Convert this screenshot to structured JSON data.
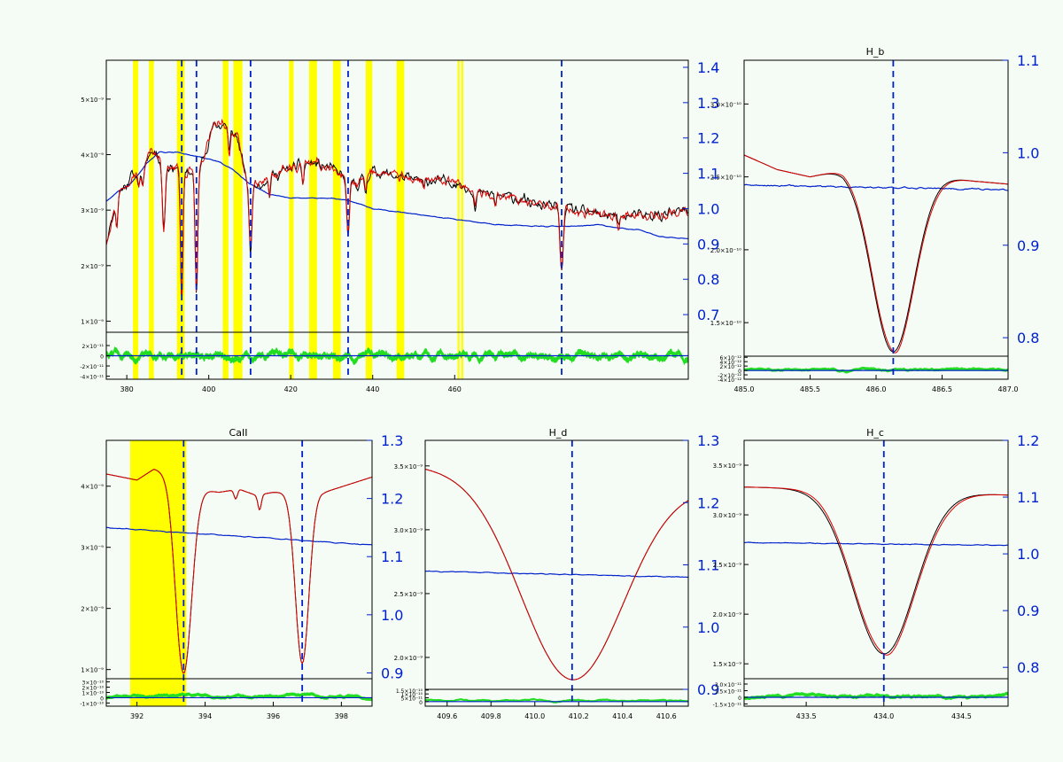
{
  "colors": {
    "background": "#f5fbf5",
    "observed": "#000000",
    "model": "#dd0000",
    "continuum": "#0022cc",
    "residual": "#22dd22",
    "marker": "#0022cc",
    "highlight": "#ffff00"
  },
  "chart_data": [
    {
      "id": "overview",
      "type": "line",
      "title": "",
      "xlim": [
        375,
        517
      ],
      "ylim": [
        0.8,
        5.7
      ],
      "y2lim": [
        0.65,
        1.42
      ],
      "xticks": [
        380,
        400,
        420,
        440,
        460
      ],
      "xtick_labels": [
        "380",
        "400",
        "420",
        "440",
        "460"
      ],
      "yticks": [
        1,
        2,
        3,
        4,
        5
      ],
      "ytick_labels": [
        "1×10⁻⁹",
        "2×10⁻⁹",
        "3×10⁻⁹",
        "4×10⁻⁹",
        "5×10⁻⁹"
      ],
      "y2ticks": [
        0.7,
        0.8,
        0.9,
        1.0,
        1.1,
        1.2,
        1.3,
        1.4
      ],
      "y2tick_labels": [
        "0.7",
        "0.8",
        "0.9",
        "1.0",
        "1.1",
        "1.2",
        "1.3",
        "1.4"
      ],
      "rlim": [
        -4.6,
        4.6
      ],
      "rticks": [
        -4,
        -2,
        0,
        2
      ],
      "rtick_labels": [
        "-4×10⁻¹¹",
        "-2×10⁻¹¹",
        "0",
        "2×10⁻¹¹"
      ],
      "markers": [
        393.4,
        397.0,
        410.2,
        434.0,
        486.1
      ],
      "highlights": [
        [
          381.5,
          382.8
        ],
        [
          385.4,
          386.6
        ],
        [
          392.2,
          394.1
        ],
        [
          403.4,
          404.8
        ],
        [
          406.0,
          408.2
        ],
        [
          419.6,
          420.7
        ],
        [
          424.5,
          426.4
        ],
        [
          430.3,
          432.2
        ],
        [
          438.3,
          439.9
        ],
        [
          445.8,
          447.7
        ],
        [
          460.7,
          461.2
        ],
        [
          461.6,
          462.1
        ]
      ],
      "lines": [
        [
          377.6,
          0.45,
          0.35
        ],
        [
          382.9,
          0.25,
          0.35
        ],
        [
          383.8,
          0.35,
          0.4
        ],
        [
          388.9,
          0.45,
          0.45
        ],
        [
          389.1,
          0.8,
          0.5
        ],
        [
          393.4,
          2.3,
          0.4
        ],
        [
          397.0,
          2.3,
          0.45
        ],
        [
          410.2,
          1.3,
          0.5
        ],
        [
          434.0,
          1.0,
          0.5
        ],
        [
          486.1,
          1.15,
          0.55
        ],
        [
          405.0,
          0.45,
          0.35
        ],
        [
          414.8,
          0.35,
          0.3
        ],
        [
          423.0,
          0.35,
          0.3
        ],
        [
          438.3,
          0.3,
          0.3
        ],
        [
          452.5,
          0.2,
          0.3
        ],
        [
          465.0,
          0.25,
          0.35
        ],
        [
          470.0,
          0.2,
          0.3
        ],
        [
          500.0,
          0.2,
          0.4
        ]
      ],
      "shape": [
        [
          375,
          2.45
        ],
        [
          378,
          3.3
        ],
        [
          381,
          3.6
        ],
        [
          384,
          3.75
        ],
        [
          386,
          4.1
        ],
        [
          390,
          3.8
        ],
        [
          392,
          3.75
        ],
        [
          394,
          3.6
        ],
        [
          398,
          3.8
        ],
        [
          401,
          4.5
        ],
        [
          404,
          4.55
        ],
        [
          407,
          4.3
        ],
        [
          409,
          3.6
        ],
        [
          412,
          3.45
        ],
        [
          415,
          3.6
        ],
        [
          420,
          3.75
        ],
        [
          425,
          3.85
        ],
        [
          430,
          3.75
        ],
        [
          433,
          3.6
        ],
        [
          436,
          3.45
        ],
        [
          440,
          3.7
        ],
        [
          450,
          3.55
        ],
        [
          460,
          3.5
        ],
        [
          466,
          3.3
        ],
        [
          473,
          3.25
        ],
        [
          480,
          3.1
        ],
        [
          486,
          3.05
        ],
        [
          492,
          2.95
        ],
        [
          500,
          2.9
        ],
        [
          510,
          2.9
        ],
        [
          517,
          3.0
        ]
      ],
      "noise": 0.12,
      "continuum": [
        [
          375,
          1.02
        ],
        [
          378,
          1.05
        ],
        [
          381,
          1.07
        ],
        [
          385,
          1.13
        ],
        [
          388,
          1.16
        ],
        [
          392,
          1.16
        ],
        [
          396,
          1.15
        ],
        [
          400,
          1.14
        ],
        [
          403,
          1.13
        ],
        [
          406,
          1.11
        ],
        [
          410,
          1.07
        ],
        [
          415,
          1.04
        ],
        [
          420,
          1.03
        ],
        [
          425,
          1.03
        ],
        [
          430,
          1.03
        ],
        [
          435,
          1.02
        ],
        [
          440,
          1.0
        ],
        [
          450,
          0.985
        ],
        [
          460,
          0.97
        ],
        [
          470,
          0.955
        ],
        [
          480,
          0.95
        ],
        [
          490,
          0.95
        ],
        [
          495,
          0.955
        ],
        [
          500,
          0.945
        ],
        [
          505,
          0.94
        ],
        [
          510,
          0.92
        ],
        [
          517,
          0.915
        ]
      ],
      "cont_noise": 0.002,
      "red_shift": 0.0
    },
    {
      "id": "hbeta",
      "type": "line",
      "title": "H_b",
      "xlim": [
        485.0,
        487.0
      ],
      "ylim": [
        1.27,
        3.3
      ],
      "y2lim": [
        0.78,
        1.1
      ],
      "xticks": [
        485.0,
        485.5,
        486.0,
        486.5,
        487.0
      ],
      "xtick_labels": [
        "485.0",
        "485.5",
        "486.0",
        "486.5",
        "487.0"
      ],
      "yticks": [
        1.5,
        2.0,
        2.5,
        3.0
      ],
      "ytick_labels": [
        "1.5×10⁻¹⁰",
        "2.0×10⁻¹⁰",
        "2.5×10⁻¹⁰",
        "3.0×10⁻¹⁰"
      ],
      "y2ticks": [
        0.8,
        0.9,
        1.0,
        1.1
      ],
      "y2tick_labels": [
        "0.8",
        "0.9",
        "1.0",
        "1.1"
      ],
      "rlim": [
        -4.0,
        6.5
      ],
      "rticks": [
        -4,
        -2,
        0,
        2,
        4,
        6
      ],
      "rtick_labels": [
        "-4×10⁻¹²",
        "-2×10⁻¹²",
        "0",
        "2×10⁻¹²",
        "4×10⁻¹²",
        "6×10⁻¹²"
      ],
      "markers": [
        486.13
      ],
      "highlights": [],
      "lines": [
        [
          486.13,
          1.2,
          0.22
        ]
      ],
      "shape": [
        [
          485.0,
          2.65
        ],
        [
          485.25,
          2.55
        ],
        [
          485.5,
          2.5
        ],
        [
          485.75,
          2.55
        ],
        [
          486.0,
          2.5
        ],
        [
          486.25,
          2.5
        ],
        [
          486.5,
          2.5
        ],
        [
          486.75,
          2.47
        ],
        [
          487.0,
          2.45
        ]
      ],
      "noise": 0.0,
      "continuum": [
        [
          485.0,
          0.965
        ],
        [
          487.0,
          0.96
        ]
      ],
      "cont_noise": 0.0015,
      "red_shift": -0.06
    },
    {
      "id": "caii",
      "type": "line",
      "title": "CaII",
      "xlim": [
        391.1,
        398.9
      ],
      "ylim": [
        0.85,
        4.75
      ],
      "y2lim": [
        0.89,
        1.3
      ],
      "xticks": [
        392,
        394,
        396,
        398
      ],
      "xtick_labels": [
        "392",
        "394",
        "396",
        "398"
      ],
      "yticks": [
        1,
        2,
        3,
        4
      ],
      "ytick_labels": [
        "1×10⁻⁹",
        "2×10⁻⁹",
        "3×10⁻⁹",
        "4×10⁻⁹"
      ],
      "y2ticks": [
        0.9,
        1.0,
        1.1,
        1.2,
        1.3
      ],
      "y2tick_labels": [
        "0.9",
        "1.0",
        "1.1",
        "1.2",
        "1.3"
      ],
      "rlim": [
        -1.6,
        3.6
      ],
      "rticks": [
        -1,
        0,
        1,
        2,
        3
      ],
      "rtick_labels": [
        "-1×10⁻¹⁰",
        "0",
        "1×10⁻¹⁰",
        "2×10⁻¹⁰",
        "3×10⁻¹⁰"
      ],
      "markers": [
        393.37,
        396.85
      ],
      "highlights": [
        [
          391.8,
          393.45
        ]
      ],
      "lines": [
        [
          393.37,
          3.05,
          0.33
        ],
        [
          396.85,
          2.8,
          0.28
        ],
        [
          395.6,
          0.25,
          0.07
        ],
        [
          394.9,
          0.15,
          0.07
        ]
      ],
      "shape": [
        [
          391.1,
          4.2
        ],
        [
          392.0,
          4.1
        ],
        [
          392.5,
          4.28
        ],
        [
          392.9,
          4.22
        ],
        [
          393.2,
          4.0
        ],
        [
          394.4,
          3.9
        ],
        [
          395.0,
          3.95
        ],
        [
          395.5,
          3.85
        ],
        [
          396.0,
          3.9
        ],
        [
          397.5,
          3.9
        ],
        [
          398.9,
          4.15
        ]
      ],
      "noise": 0.0,
      "continuum": [
        [
          391.1,
          1.15
        ],
        [
          398.9,
          1.12
        ]
      ],
      "cont_noise": 0.0012,
      "red_shift": 0.0
    },
    {
      "id": "hdelta",
      "type": "line",
      "title": "H_d",
      "xlim": [
        409.5,
        410.7
      ],
      "ylim": [
        1.75,
        3.7
      ],
      "y2lim": [
        0.9,
        1.3
      ],
      "xticks": [
        409.6,
        409.8,
        410.0,
        410.2,
        410.4,
        410.6
      ],
      "xtick_labels": [
        "409.6",
        "409.8",
        "410.0",
        "410.2",
        "410.4",
        "410.6"
      ],
      "yticks": [
        2.0,
        2.5,
        3.0,
        3.5
      ],
      "ytick_labels": [
        "2.0×10⁻⁹",
        "2.5×10⁻⁹",
        "3.0×10⁻⁹",
        "3.5×10⁻⁹"
      ],
      "y2ticks": [
        0.9,
        1.0,
        1.1,
        1.2,
        1.3
      ],
      "y2tick_labels": [
        "0.9",
        "1.0",
        "1.1",
        "1.2",
        "1.3"
      ],
      "rlim": [
        -0.6,
        1.6
      ],
      "rticks": [
        0,
        0.5,
        1.0,
        1.5
      ],
      "rtick_labels": [
        "0",
        "5×10⁻¹¹",
        "1×10⁻¹⁰",
        "1.5×10⁻¹⁰"
      ],
      "markers": [
        410.17
      ],
      "highlights": [],
      "lines": [
        [
          410.17,
          1.6,
          0.33
        ]
      ],
      "shape": [
        [
          409.5,
          3.5
        ],
        [
          410.0,
          3.45
        ],
        [
          410.7,
          3.35
        ]
      ],
      "noise": 0.0,
      "continuum": [
        [
          409.5,
          1.09
        ],
        [
          410.7,
          1.08
        ]
      ],
      "cont_noise": 0.0012,
      "red_shift": 0.0
    },
    {
      "id": "hgamma",
      "type": "line",
      "title": "H_c",
      "xlim": [
        433.1,
        434.8
      ],
      "ylim": [
        1.35,
        3.75
      ],
      "y2lim": [
        0.78,
        1.2
      ],
      "xticks": [
        433.5,
        434.0,
        434.5
      ],
      "xtick_labels": [
        "433.5",
        "434.0",
        "434.5"
      ],
      "yticks": [
        1.5,
        2.0,
        2.5,
        3.0,
        3.5
      ],
      "ytick_labels": [
        "1.5×10⁻⁹",
        "2.0×10⁻⁹",
        "2.5×10⁻⁹",
        "3.0×10⁻⁹",
        "3.5×10⁻⁹"
      ],
      "y2ticks": [
        0.8,
        0.9,
        1.0,
        1.1,
        1.2
      ],
      "y2tick_labels": [
        "0.8",
        "0.9",
        "1.0",
        "1.1",
        "1.2"
      ],
      "rlim": [
        -2.0,
        4.2
      ],
      "rticks": [
        -1.5,
        0,
        1.5,
        3.0
      ],
      "rtick_labels": [
        "-1.5×10⁻¹¹",
        "0",
        "1.5×10⁻¹¹",
        "3.0×10⁻¹¹"
      ],
      "markers": [
        434.0
      ],
      "highlights": [],
      "lines": [
        [
          434.0,
          1.65,
          0.28
        ]
      ],
      "shape": [
        [
          433.1,
          3.28
        ],
        [
          434.0,
          3.25
        ],
        [
          434.8,
          3.2
        ]
      ],
      "noise": 0.0,
      "continuum": [
        [
          433.1,
          1.02
        ],
        [
          434.8,
          1.015
        ]
      ],
      "cont_noise": 0.0012,
      "red_shift": -0.08
    }
  ]
}
